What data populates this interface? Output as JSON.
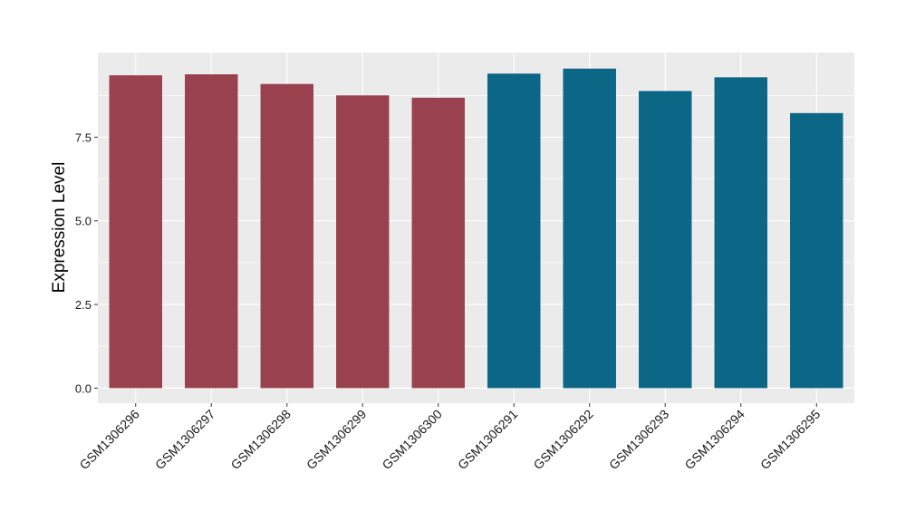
{
  "chart_data": {
    "type": "bar",
    "title": "",
    "xlabel": "",
    "ylabel": "Expression Level",
    "ylim": [
      -0.45,
      10.03
    ],
    "yticks": [
      0.0,
      2.5,
      5.0,
      7.5
    ],
    "ytick_labels": [
      "0.0",
      "2.5",
      "5.0",
      "7.5"
    ],
    "grid": true,
    "legend": "none",
    "categories": [
      "GSM1306296",
      "GSM1306297",
      "GSM1306298",
      "GSM1306299",
      "GSM1306300",
      "GSM1306291",
      "GSM1306292",
      "GSM1306293",
      "GSM1306294",
      "GSM1306295"
    ],
    "values": [
      9.35,
      9.38,
      9.09,
      8.75,
      8.68,
      9.4,
      9.55,
      8.88,
      9.29,
      8.22
    ],
    "bar_colors": [
      "#9a414f",
      "#9a414f",
      "#9a414f",
      "#9a414f",
      "#9a414f",
      "#0c6686",
      "#0c6686",
      "#0c6686",
      "#0c6686",
      "#0c6686"
    ]
  }
}
